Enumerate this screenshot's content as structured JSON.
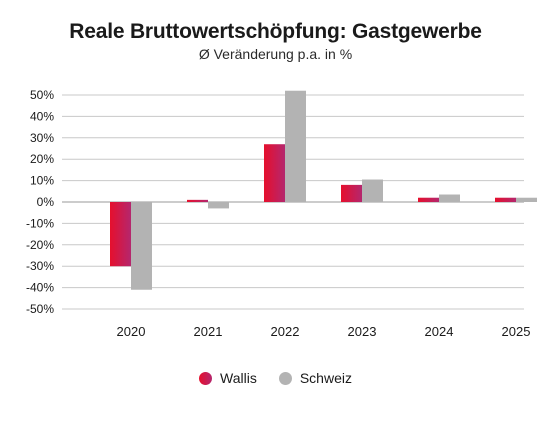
{
  "chart_data": {
    "type": "bar",
    "title": "Reale Bruttowertschöpfung: Gastgewerbe",
    "subtitle": "Ø Veränderung p.a. in %",
    "categories": [
      "2020",
      "2021",
      "2022",
      "2023",
      "2024",
      "2025"
    ],
    "series": [
      {
        "name": "Wallis",
        "color": "#d4123f",
        "values": [
          -30,
          1,
          27,
          8,
          2,
          2
        ]
      },
      {
        "name": "Schweiz",
        "color": "#b3b3b3",
        "values": [
          -41,
          -3,
          52,
          10.5,
          3.5,
          2
        ]
      }
    ],
    "ylim": [
      -50,
      50
    ],
    "yticks": [
      50,
      40,
      30,
      20,
      10,
      0,
      -10,
      -20,
      -30,
      -40,
      -50
    ],
    "ytick_labels": [
      "50%",
      "40%",
      "30%",
      "20%",
      "10%",
      "0%",
      "-10%",
      "-20%",
      "-30%",
      "-40%",
      "-50%"
    ],
    "grid": true,
    "legend_position": "bottom"
  }
}
